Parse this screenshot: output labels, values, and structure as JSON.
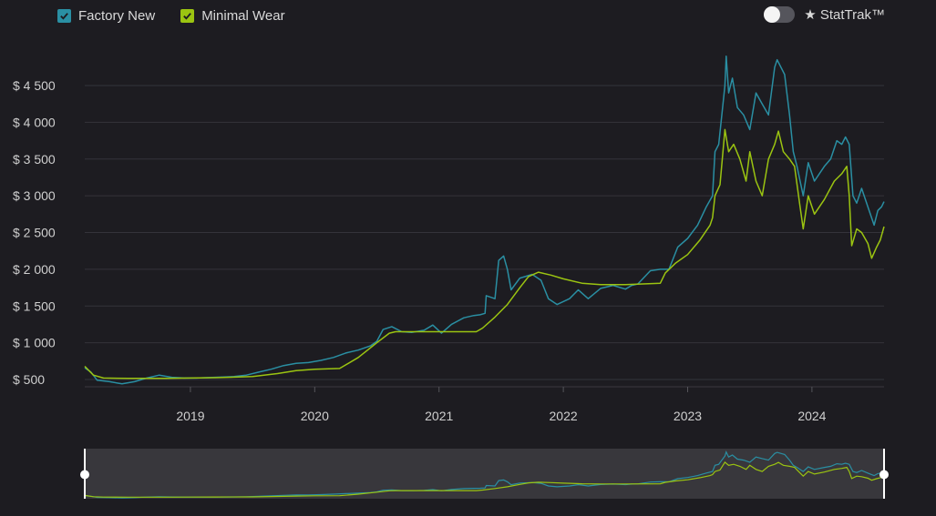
{
  "legend": {
    "factory_new": {
      "label": "Factory New",
      "color": "#2a8fa3",
      "checked": true
    },
    "minimal_wear": {
      "label": "Minimal Wear",
      "color": "#9bc411",
      "checked": true
    }
  },
  "stattrak": {
    "label": "★ StatTrak™",
    "on": false
  },
  "chart_data": {
    "type": "line",
    "title": "",
    "xlabel": "",
    "ylabel": "",
    "xlim": [
      2018.15,
      2024.58
    ],
    "ylim": [
      450,
      5000
    ],
    "yticks": [
      500,
      1000,
      1500,
      2000,
      2500,
      3000,
      3500,
      4000,
      4500
    ],
    "ytick_labels": [
      "$ 500",
      "$ 1 000",
      "$ 1 500",
      "$ 2 000",
      "$ 2 500",
      "$ 3 000",
      "$ 3 500",
      "$ 4 000",
      "$ 4 500"
    ],
    "xticks": [
      2019,
      2020,
      2021,
      2022,
      2023,
      2024
    ],
    "xtick_labels": [
      "2019",
      "2020",
      "2021",
      "2022",
      "2023",
      "2024"
    ],
    "grid": "horizontal",
    "legend_position": "top-left",
    "series": [
      {
        "name": "Factory New",
        "color": "#2a8fa3",
        "points": [
          [
            2018.15,
            660
          ],
          [
            2018.2,
            600
          ],
          [
            2018.25,
            490
          ],
          [
            2018.35,
            470
          ],
          [
            2018.45,
            440
          ],
          [
            2018.55,
            470
          ],
          [
            2018.65,
            520
          ],
          [
            2018.75,
            560
          ],
          [
            2018.85,
            530
          ],
          [
            2018.95,
            520
          ],
          [
            2019.05,
            520
          ],
          [
            2019.2,
            530
          ],
          [
            2019.35,
            540
          ],
          [
            2019.45,
            560
          ],
          [
            2019.55,
            600
          ],
          [
            2019.65,
            640
          ],
          [
            2019.75,
            690
          ],
          [
            2019.85,
            720
          ],
          [
            2019.95,
            730
          ],
          [
            2020.05,
            760
          ],
          [
            2020.15,
            800
          ],
          [
            2020.25,
            860
          ],
          [
            2020.35,
            900
          ],
          [
            2020.45,
            960
          ],
          [
            2020.5,
            1020
          ],
          [
            2020.55,
            1180
          ],
          [
            2020.62,
            1220
          ],
          [
            2020.7,
            1150
          ],
          [
            2020.78,
            1140
          ],
          [
            2020.88,
            1170
          ],
          [
            2020.95,
            1240
          ],
          [
            2021.02,
            1130
          ],
          [
            2021.1,
            1250
          ],
          [
            2021.2,
            1340
          ],
          [
            2021.28,
            1370
          ],
          [
            2021.33,
            1380
          ],
          [
            2021.37,
            1400
          ],
          [
            2021.38,
            1640
          ],
          [
            2021.45,
            1600
          ],
          [
            2021.48,
            2120
          ],
          [
            2021.52,
            2180
          ],
          [
            2021.55,
            2000
          ],
          [
            2021.58,
            1720
          ],
          [
            2021.65,
            1880
          ],
          [
            2021.75,
            1930
          ],
          [
            2021.82,
            1850
          ],
          [
            2021.88,
            1600
          ],
          [
            2021.95,
            1520
          ],
          [
            2022.05,
            1600
          ],
          [
            2022.12,
            1720
          ],
          [
            2022.2,
            1600
          ],
          [
            2022.3,
            1740
          ],
          [
            2022.4,
            1780
          ],
          [
            2022.5,
            1730
          ],
          [
            2022.55,
            1780
          ],
          [
            2022.6,
            1800
          ],
          [
            2022.7,
            1980
          ],
          [
            2022.78,
            2000
          ],
          [
            2022.85,
            2000
          ],
          [
            2022.92,
            2300
          ],
          [
            2023.0,
            2420
          ],
          [
            2023.08,
            2600
          ],
          [
            2023.15,
            2850
          ],
          [
            2023.2,
            3000
          ],
          [
            2023.22,
            3600
          ],
          [
            2023.25,
            3700
          ],
          [
            2023.3,
            4500
          ],
          [
            2023.31,
            4900
          ],
          [
            2023.33,
            4400
          ],
          [
            2023.36,
            4600
          ],
          [
            2023.4,
            4200
          ],
          [
            2023.45,
            4100
          ],
          [
            2023.5,
            3900
          ],
          [
            2023.55,
            4400
          ],
          [
            2023.6,
            4250
          ],
          [
            2023.65,
            4100
          ],
          [
            2023.7,
            4750
          ],
          [
            2023.72,
            4850
          ],
          [
            2023.78,
            4650
          ],
          [
            2023.82,
            4100
          ],
          [
            2023.85,
            3600
          ],
          [
            2023.88,
            3400
          ],
          [
            2023.93,
            3000
          ],
          [
            2023.97,
            3450
          ],
          [
            2024.02,
            3200
          ],
          [
            2024.1,
            3400
          ],
          [
            2024.15,
            3500
          ],
          [
            2024.2,
            3750
          ],
          [
            2024.24,
            3700
          ],
          [
            2024.27,
            3800
          ],
          [
            2024.3,
            3700
          ],
          [
            2024.33,
            3000
          ],
          [
            2024.36,
            2900
          ],
          [
            2024.4,
            3100
          ],
          [
            2024.46,
            2800
          ],
          [
            2024.5,
            2600
          ],
          [
            2024.53,
            2800
          ],
          [
            2024.56,
            2850
          ],
          [
            2024.58,
            2920
          ]
        ]
      },
      {
        "name": "Minimal Wear",
        "color": "#9bc411",
        "points": [
          [
            2018.15,
            680
          ],
          [
            2018.22,
            560
          ],
          [
            2018.3,
            520
          ],
          [
            2018.5,
            515
          ],
          [
            2018.8,
            515
          ],
          [
            2019.0,
            520
          ],
          [
            2019.2,
            525
          ],
          [
            2019.5,
            540
          ],
          [
            2019.7,
            580
          ],
          [
            2019.85,
            620
          ],
          [
            2020.0,
            640
          ],
          [
            2020.2,
            650
          ],
          [
            2020.35,
            800
          ],
          [
            2020.5,
            1000
          ],
          [
            2020.6,
            1130
          ],
          [
            2020.65,
            1150
          ],
          [
            2021.0,
            1150
          ],
          [
            2021.3,
            1150
          ],
          [
            2021.35,
            1200
          ],
          [
            2021.45,
            1350
          ],
          [
            2021.55,
            1520
          ],
          [
            2021.65,
            1750
          ],
          [
            2021.72,
            1900
          ],
          [
            2021.8,
            1960
          ],
          [
            2021.9,
            1920
          ],
          [
            2022.0,
            1870
          ],
          [
            2022.15,
            1810
          ],
          [
            2022.3,
            1790
          ],
          [
            2022.5,
            1790
          ],
          [
            2022.78,
            1810
          ],
          [
            2022.82,
            1950
          ],
          [
            2022.9,
            2080
          ],
          [
            2023.0,
            2200
          ],
          [
            2023.1,
            2400
          ],
          [
            2023.18,
            2600
          ],
          [
            2023.2,
            2700
          ],
          [
            2023.22,
            3000
          ],
          [
            2023.26,
            3150
          ],
          [
            2023.3,
            3900
          ],
          [
            2023.33,
            3600
          ],
          [
            2023.37,
            3700
          ],
          [
            2023.42,
            3500
          ],
          [
            2023.47,
            3200
          ],
          [
            2023.5,
            3600
          ],
          [
            2023.55,
            3200
          ],
          [
            2023.6,
            3000
          ],
          [
            2023.65,
            3500
          ],
          [
            2023.7,
            3700
          ],
          [
            2023.73,
            3880
          ],
          [
            2023.77,
            3600
          ],
          [
            2023.82,
            3500
          ],
          [
            2023.86,
            3400
          ],
          [
            2023.9,
            2900
          ],
          [
            2023.93,
            2550
          ],
          [
            2023.97,
            3000
          ],
          [
            2024.02,
            2750
          ],
          [
            2024.1,
            2950
          ],
          [
            2024.18,
            3200
          ],
          [
            2024.24,
            3300
          ],
          [
            2024.28,
            3400
          ],
          [
            2024.3,
            3000
          ],
          [
            2024.32,
            2320
          ],
          [
            2024.36,
            2550
          ],
          [
            2024.4,
            2500
          ],
          [
            2024.45,
            2350
          ],
          [
            2024.48,
            2150
          ],
          [
            2024.52,
            2300
          ],
          [
            2024.55,
            2400
          ],
          [
            2024.58,
            2580
          ]
        ]
      }
    ]
  }
}
